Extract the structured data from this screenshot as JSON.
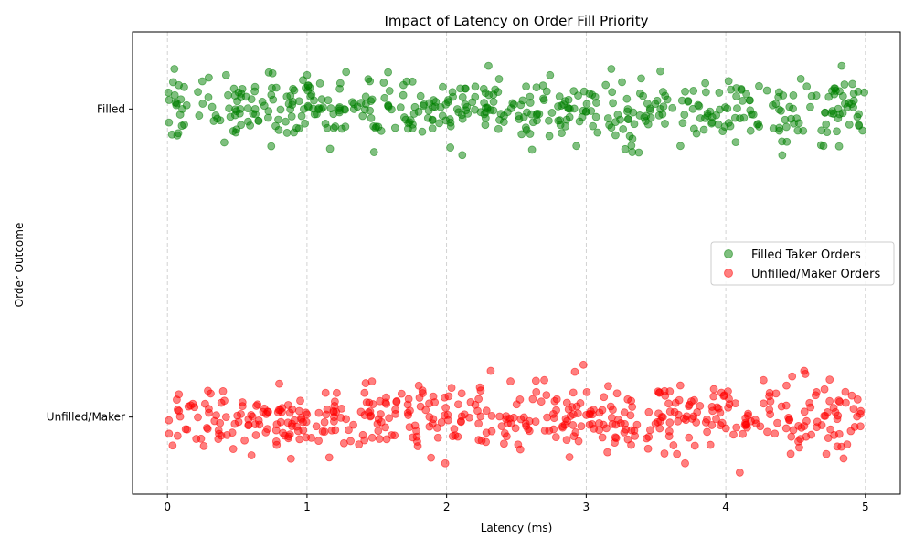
{
  "chart_data": {
    "type": "scatter",
    "title": "Impact of Latency on Order Fill Priority",
    "xlabel": "Latency (ms)",
    "ylabel": "Order Outcome",
    "xlim": [
      -0.25,
      5.25
    ],
    "ylim": [
      -0.25,
      1.25
    ],
    "x_ticks": [
      0,
      1,
      2,
      3,
      4,
      5
    ],
    "x_tick_labels": [
      "0",
      "1",
      "2",
      "3",
      "4",
      "5"
    ],
    "y_ticks": [
      0,
      1
    ],
    "y_tick_labels": [
      "Unfilled/Maker",
      "Filled"
    ],
    "grid": "x-dashed",
    "legend_position": "center-right",
    "series": [
      {
        "name": "Filled Taker Orders",
        "color": "#008000",
        "count": 500,
        "x_range": [
          0,
          5
        ],
        "y_center": 1,
        "y_jitter_std": 0.05,
        "sample_points": [
          {
            "x": 0.05,
            "y": 1.13
          },
          {
            "x": 0.25,
            "y": 1.09
          },
          {
            "x": 0.42,
            "y": 1.11
          },
          {
            "x": 1.0,
            "y": 1.11
          },
          {
            "x": 1.28,
            "y": 1.12
          },
          {
            "x": 1.45,
            "y": 1.09
          },
          {
            "x": 2.3,
            "y": 1.14
          },
          {
            "x": 3.18,
            "y": 1.13
          },
          {
            "x": 4.83,
            "y": 1.14
          },
          {
            "x": 1.48,
            "y": 0.86
          },
          {
            "x": 2.93,
            "y": 0.88
          },
          {
            "x": 3.33,
            "y": 0.86
          },
          {
            "x": 4.7,
            "y": 0.88
          }
        ]
      },
      {
        "name": "Unfilled/Maker Orders",
        "color": "#ff0000",
        "count": 500,
        "x_range": [
          0,
          5
        ],
        "y_center": 0,
        "y_jitter_std": 0.05,
        "sample_points": [
          {
            "x": 2.98,
            "y": 0.17
          },
          {
            "x": 4.57,
            "y": 0.14
          },
          {
            "x": 4.27,
            "y": 0.12
          },
          {
            "x": 1.42,
            "y": 0.11
          },
          {
            "x": 2.7,
            "y": 0.12
          },
          {
            "x": 1.99,
            "y": -0.15
          },
          {
            "x": 4.1,
            "y": -0.18
          },
          {
            "x": 2.88,
            "y": -0.13
          },
          {
            "x": 3.65,
            "y": -0.12
          },
          {
            "x": 4.72,
            "y": -0.12
          }
        ]
      }
    ]
  }
}
